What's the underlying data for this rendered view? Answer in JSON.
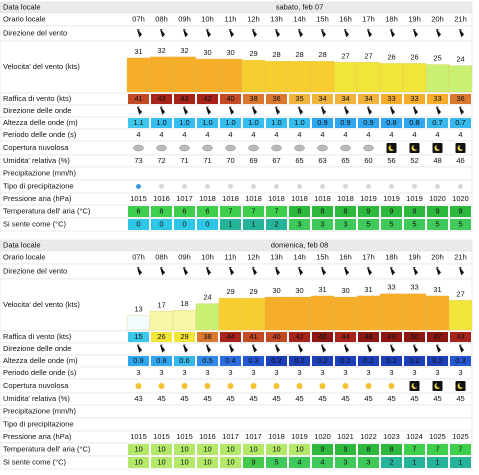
{
  "days": [
    {
      "date": "sabato, feb 07",
      "labels": [
        "Data locale",
        "Orario locale",
        "Direzione del vento",
        "Velocita' del vento (kts)",
        "Raffica di vento (kts)",
        "Direzione delle onde",
        "Altezza delle onde (m)",
        "Periodo delle onde (s)",
        "Copertura nuvolosa",
        "Umidita' relativa (%)",
        "Precipitazione (mm/h)",
        "Tipo di precipitazione",
        "Pressione aria (hPa)",
        "Temperatura dell' aria (°C)",
        "Si sente come (°C)"
      ],
      "hours": [
        "07h",
        "08h",
        "09h",
        "10h",
        "11h",
        "12h",
        "13h",
        "14h",
        "15h",
        "16h",
        "17h",
        "18h",
        "19h",
        "20h",
        "21h"
      ],
      "wind": [
        31,
        32,
        32,
        30,
        30,
        29,
        28,
        28,
        28,
        27,
        27,
        26,
        26,
        25,
        24
      ],
      "gusts": [
        41,
        43,
        43,
        42,
        40,
        38,
        36,
        35,
        34,
        34,
        34,
        33,
        33,
        33,
        36
      ],
      "wave_height": [
        "1.1",
        "1.0",
        "1.0",
        "1.0",
        "1.0",
        "1.0",
        "1.0",
        "1.0",
        "0.9",
        "0.9",
        "0.9",
        "0.8",
        "0.8",
        "0.7",
        "0.7"
      ],
      "wave_period": [
        4,
        4,
        4,
        4,
        4,
        4,
        4,
        4,
        4,
        4,
        4,
        4,
        4,
        4,
        4
      ],
      "humidity": [
        73,
        72,
        71,
        71,
        70,
        69,
        67,
        65,
        63,
        65,
        60,
        56,
        52,
        48,
        46
      ],
      "pressure": [
        1015,
        1016,
        1017,
        1018,
        1018,
        1018,
        1018,
        1018,
        1018,
        1018,
        1019,
        1019,
        1019,
        1020,
        1020
      ],
      "temperature": [
        6,
        6,
        6,
        6,
        7,
        7,
        7,
        8,
        8,
        8,
        9,
        9,
        9,
        9,
        9
      ],
      "feels_like": [
        0,
        0,
        0,
        0,
        1,
        1,
        2,
        3,
        3,
        3,
        5,
        5,
        5,
        5,
        5
      ]
    },
    {
      "date": "domenica, feb 08",
      "labels": [
        "Data locale",
        "Orario locale",
        "Direzione del vento",
        "Velocita' del vento (kts)",
        "Raffica di vento (kts)",
        "Direzione delle onde",
        "Altezza delle onde (m)",
        "Periodo delle onde (s)",
        "Copertura nuvolosa",
        "Umidita' relativa (%)",
        "Precipitazione (mm/h)",
        "Tipo di precipitazione",
        "Pressione aria (hPa)",
        "Temperatura dell' aria (°C)",
        "Si sente come (°C)"
      ],
      "hours": [
        "07h",
        "08h",
        "09h",
        "10h",
        "11h",
        "12h",
        "13h",
        "14h",
        "15h",
        "16h",
        "17h",
        "18h",
        "19h",
        "20h",
        "21h"
      ],
      "wind": [
        13,
        17,
        18,
        24,
        29,
        29,
        30,
        30,
        31,
        30,
        31,
        33,
        33,
        31,
        27
      ],
      "gusts": [
        15,
        26,
        29,
        38,
        44,
        41,
        40,
        42,
        46,
        44,
        48,
        49,
        50,
        47,
        43
      ],
      "wave_height": [
        "0.9",
        "0.8",
        "0.6",
        "0.5",
        "0.4",
        "0.3",
        "0.2",
        "0.2",
        "0.2",
        "0.2",
        "0.2",
        "0.2",
        "0.2",
        "0.2",
        "0.3"
      ],
      "wave_period": [
        3,
        3,
        3,
        3,
        3,
        3,
        3,
        3,
        3,
        3,
        3,
        3,
        3,
        3,
        3
      ],
      "humidity": [
        43,
        45,
        45,
        45,
        45,
        45,
        45,
        45,
        45,
        45,
        45,
        45,
        45,
        45,
        45
      ],
      "pressure": [
        1015,
        1015,
        1015,
        1016,
        1017,
        1017,
        1018,
        1019,
        1020,
        1021,
        1022,
        1023,
        1024,
        1025,
        1025
      ],
      "temperature": [
        10,
        10,
        10,
        10,
        10,
        10,
        10,
        10,
        9,
        9,
        8,
        8,
        7,
        7,
        7
      ],
      "feels_like": [
        10,
        10,
        10,
        10,
        10,
        9,
        5,
        4,
        4,
        3,
        3,
        2,
        1,
        1,
        1
      ]
    }
  ]
}
